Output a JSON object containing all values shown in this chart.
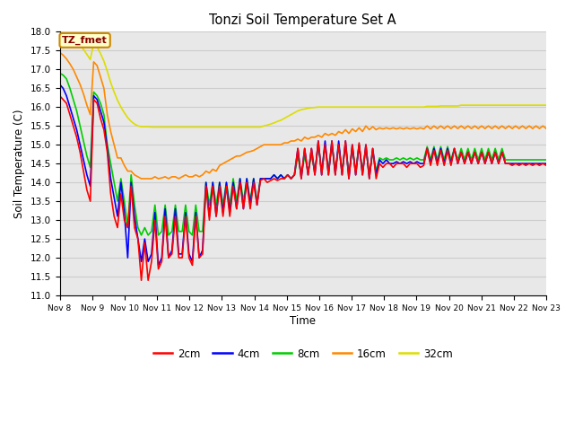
{
  "title": "Tonzi Soil Temperature Set A",
  "xlabel": "Time",
  "ylabel": "Soil Temperature (C)",
  "ylim": [
    11.0,
    18.0
  ],
  "yticks": [
    11.0,
    11.5,
    12.0,
    12.5,
    13.0,
    13.5,
    14.0,
    14.5,
    15.0,
    15.5,
    16.0,
    16.5,
    17.0,
    17.5,
    18.0
  ],
  "xtick_labels": [
    "Nov 8",
    "Nov 9",
    "Nov 10",
    "Nov 11",
    "Nov 12",
    "Nov 13",
    "Nov 14",
    "Nov 15",
    "Nov 16",
    "Nov 17",
    "Nov 18",
    "Nov 19",
    "Nov 20",
    "Nov 21",
    "Nov 22",
    "Nov 23"
  ],
  "annotation_text": "TZ_fmet",
  "annotation_bg": "#ffffcc",
  "annotation_border": "#cc8800",
  "bg_color": "#e8e8e8",
  "line_2cm": {
    "color": "#ff0000",
    "label": "2cm",
    "data": [
      16.3,
      16.2,
      16.1,
      15.8,
      15.5,
      15.2,
      14.8,
      14.3,
      13.8,
      13.5,
      16.2,
      16.1,
      15.7,
      15.4,
      14.8,
      13.7,
      13.1,
      12.8,
      13.7,
      13.0,
      12.8,
      13.9,
      12.8,
      12.5,
      11.4,
      12.4,
      11.4,
      11.9,
      13.0,
      11.7,
      11.9,
      13.1,
      12.0,
      12.1,
      13.1,
      12.0,
      12.0,
      13.1,
      12.0,
      11.8,
      13.1,
      12.0,
      12.1,
      13.9,
      13.0,
      13.9,
      13.1,
      13.9,
      13.1,
      13.9,
      13.1,
      13.9,
      13.3,
      14.0,
      13.3,
      14.0,
      13.3,
      14.0,
      13.4,
      14.05,
      14.1,
      14.0,
      14.05,
      14.1,
      14.05,
      14.1,
      14.1,
      14.2,
      14.1,
      14.2,
      14.9,
      14.1,
      14.9,
      14.2,
      14.9,
      14.2,
      15.1,
      14.2,
      15.0,
      14.2,
      15.1,
      14.2,
      15.0,
      14.2,
      15.1,
      14.1,
      15.0,
      14.2,
      15.05,
      14.2,
      15.0,
      14.1,
      14.9,
      14.1,
      14.5,
      14.4,
      14.5,
      14.5,
      14.4,
      14.5,
      14.5,
      14.5,
      14.4,
      14.5,
      14.5,
      14.5,
      14.4,
      14.45,
      14.9,
      14.45,
      14.85,
      14.45,
      14.85,
      14.45,
      14.85,
      14.45,
      14.9,
      14.5,
      14.8,
      14.5,
      14.8,
      14.5,
      14.8,
      14.5,
      14.8,
      14.5,
      14.8,
      14.5,
      14.8,
      14.5,
      14.8,
      14.5,
      14.5,
      14.45,
      14.5,
      14.45,
      14.5,
      14.45,
      14.5,
      14.45,
      14.5,
      14.45,
      14.5,
      14.45
    ]
  },
  "line_4cm": {
    "color": "#0000ff",
    "label": "4cm",
    "data": [
      16.6,
      16.5,
      16.3,
      16.0,
      15.7,
      15.4,
      15.0,
      14.6,
      14.2,
      13.9,
      16.3,
      16.2,
      15.9,
      15.6,
      14.9,
      14.1,
      13.6,
      13.1,
      14.0,
      13.2,
      12.0,
      14.0,
      13.1,
      12.5,
      11.9,
      12.5,
      11.9,
      12.1,
      13.2,
      11.8,
      12.0,
      13.3,
      12.0,
      12.2,
      13.3,
      12.1,
      12.1,
      13.2,
      12.1,
      11.9,
      13.2,
      12.0,
      12.2,
      14.0,
      13.1,
      14.0,
      13.1,
      14.0,
      13.2,
      14.0,
      13.2,
      14.0,
      13.3,
      14.1,
      13.3,
      14.1,
      13.4,
      14.1,
      13.4,
      14.1,
      14.1,
      14.1,
      14.1,
      14.2,
      14.1,
      14.2,
      14.1,
      14.2,
      14.1,
      14.2,
      14.9,
      14.1,
      14.9,
      14.2,
      14.9,
      14.2,
      15.1,
      14.2,
      15.1,
      14.2,
      15.1,
      14.2,
      15.1,
      14.2,
      15.1,
      14.1,
      15.0,
      14.2,
      15.0,
      14.2,
      15.0,
      14.1,
      14.9,
      14.2,
      14.6,
      14.5,
      14.6,
      14.5,
      14.5,
      14.55,
      14.5,
      14.55,
      14.5,
      14.55,
      14.5,
      14.55,
      14.5,
      14.5,
      14.9,
      14.5,
      14.9,
      14.5,
      14.9,
      14.5,
      14.9,
      14.5,
      14.9,
      14.5,
      14.8,
      14.5,
      14.8,
      14.5,
      14.8,
      14.5,
      14.8,
      14.5,
      14.8,
      14.5,
      14.8,
      14.5,
      14.8,
      14.5,
      14.5,
      14.5,
      14.5,
      14.5,
      14.5,
      14.5,
      14.5,
      14.5,
      14.5,
      14.5,
      14.5,
      14.5
    ]
  },
  "line_8cm": {
    "color": "#00cc00",
    "label": "8cm",
    "data": [
      16.9,
      16.85,
      16.75,
      16.5,
      16.2,
      15.9,
      15.5,
      15.1,
      14.7,
      14.4,
      16.4,
      16.3,
      16.1,
      15.8,
      15.0,
      14.5,
      14.0,
      13.5,
      14.1,
      13.5,
      12.8,
      14.2,
      13.4,
      12.8,
      12.6,
      12.8,
      12.6,
      12.7,
      13.4,
      12.6,
      12.7,
      13.4,
      12.6,
      12.7,
      13.4,
      12.7,
      12.7,
      13.4,
      12.7,
      12.6,
      13.4,
      12.7,
      12.7,
      14.0,
      13.4,
      14.0,
      13.4,
      14.0,
      13.4,
      14.0,
      13.4,
      14.1,
      13.5,
      14.1,
      13.5,
      14.1,
      13.5,
      14.1,
      13.5,
      14.1,
      14.1,
      14.1,
      14.1,
      14.2,
      14.1,
      14.2,
      14.1,
      14.2,
      14.1,
      14.2,
      14.7,
      14.2,
      14.7,
      14.3,
      14.7,
      14.3,
      15.0,
      14.3,
      15.0,
      14.3,
      15.0,
      14.3,
      15.0,
      14.3,
      15.0,
      14.2,
      14.9,
      14.3,
      15.0,
      14.3,
      14.9,
      14.2,
      14.8,
      14.3,
      14.65,
      14.6,
      14.65,
      14.6,
      14.6,
      14.65,
      14.6,
      14.65,
      14.6,
      14.65,
      14.6,
      14.65,
      14.6,
      14.6,
      14.95,
      14.6,
      14.95,
      14.6,
      14.95,
      14.6,
      14.95,
      14.6,
      14.9,
      14.6,
      14.9,
      14.6,
      14.9,
      14.6,
      14.9,
      14.6,
      14.9,
      14.6,
      14.9,
      14.6,
      14.9,
      14.6,
      14.9,
      14.6,
      14.6,
      14.6,
      14.6,
      14.6,
      14.6,
      14.6,
      14.6,
      14.6,
      14.6,
      14.6,
      14.6,
      14.6
    ]
  },
  "line_16cm": {
    "color": "#ff8800",
    "label": "16cm",
    "data": [
      17.45,
      17.38,
      17.28,
      17.15,
      17.0,
      16.8,
      16.6,
      16.35,
      16.05,
      15.8,
      17.2,
      17.1,
      16.8,
      16.5,
      15.8,
      15.35,
      15.0,
      14.65,
      14.65,
      14.45,
      14.3,
      14.3,
      14.2,
      14.15,
      14.1,
      14.1,
      14.1,
      14.1,
      14.15,
      14.1,
      14.12,
      14.15,
      14.1,
      14.15,
      14.15,
      14.1,
      14.15,
      14.2,
      14.15,
      14.15,
      14.2,
      14.15,
      14.2,
      14.3,
      14.25,
      14.35,
      14.3,
      14.45,
      14.5,
      14.55,
      14.6,
      14.65,
      14.7,
      14.7,
      14.75,
      14.8,
      14.82,
      14.85,
      14.9,
      14.95,
      15.0,
      15.0,
      15.0,
      15.0,
      15.0,
      15.0,
      15.05,
      15.05,
      15.1,
      15.1,
      15.15,
      15.1,
      15.2,
      15.15,
      15.2,
      15.2,
      15.25,
      15.2,
      15.3,
      15.25,
      15.3,
      15.25,
      15.35,
      15.3,
      15.4,
      15.3,
      15.42,
      15.35,
      15.45,
      15.35,
      15.5,
      15.4,
      15.48,
      15.4,
      15.45,
      15.42,
      15.45,
      15.42,
      15.45,
      15.42,
      15.45,
      15.42,
      15.45,
      15.42,
      15.45,
      15.42,
      15.45,
      15.42,
      15.5,
      15.42,
      15.5,
      15.43,
      15.5,
      15.43,
      15.5,
      15.43,
      15.5,
      15.43,
      15.5,
      15.43,
      15.5,
      15.43,
      15.5,
      15.43,
      15.5,
      15.43,
      15.5,
      15.43,
      15.5,
      15.43,
      15.5,
      15.43,
      15.5,
      15.43,
      15.5,
      15.43,
      15.5,
      15.43,
      15.5,
      15.43,
      15.5,
      15.43,
      15.5,
      15.43
    ]
  },
  "line_32cm": {
    "color": "#dddd00",
    "label": "32cm",
    "data": [
      17.98,
      17.96,
      17.93,
      17.88,
      17.82,
      17.74,
      17.65,
      17.53,
      17.4,
      17.26,
      17.7,
      17.6,
      17.42,
      17.22,
      16.95,
      16.65,
      16.4,
      16.18,
      16.0,
      15.85,
      15.72,
      15.62,
      15.55,
      15.5,
      15.48,
      15.48,
      15.48,
      15.47,
      15.47,
      15.47,
      15.47,
      15.47,
      15.47,
      15.47,
      15.47,
      15.47,
      15.47,
      15.47,
      15.47,
      15.47,
      15.47,
      15.47,
      15.47,
      15.47,
      15.47,
      15.47,
      15.47,
      15.47,
      15.47,
      15.47,
      15.47,
      15.47,
      15.47,
      15.47,
      15.47,
      15.47,
      15.47,
      15.47,
      15.47,
      15.47,
      15.5,
      15.52,
      15.55,
      15.58,
      15.62,
      15.65,
      15.7,
      15.75,
      15.8,
      15.85,
      15.9,
      15.93,
      15.95,
      15.97,
      15.98,
      15.99,
      16.0,
      16.0,
      16.0,
      16.0,
      16.0,
      16.0,
      16.0,
      16.0,
      16.0,
      16.0,
      16.0,
      16.0,
      16.0,
      16.0,
      16.0,
      16.0,
      16.0,
      16.0,
      16.0,
      16.0,
      16.0,
      16.0,
      16.0,
      16.0,
      16.0,
      16.0,
      16.0,
      16.0,
      16.0,
      16.0,
      16.0,
      16.0,
      16.02,
      16.02,
      16.02,
      16.02,
      16.03,
      16.03,
      16.03,
      16.03,
      16.03,
      16.03,
      16.05,
      16.05,
      16.05,
      16.05,
      16.05,
      16.05,
      16.05,
      16.05,
      16.05,
      16.05,
      16.05,
      16.05,
      16.05,
      16.05,
      16.05,
      16.05,
      16.05,
      16.05,
      16.05,
      16.05,
      16.05,
      16.05,
      16.05,
      16.05,
      16.05,
      16.05
    ]
  }
}
